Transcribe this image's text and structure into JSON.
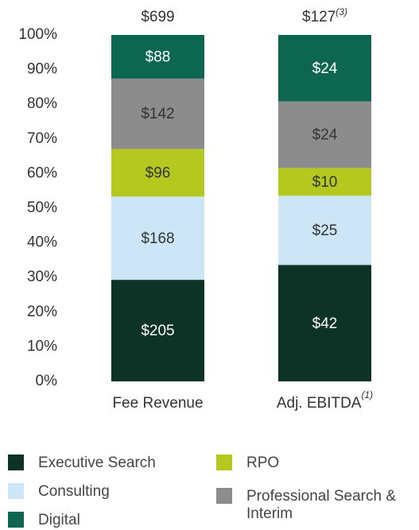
{
  "chart_data": {
    "type": "stacked_percent_bar",
    "categories": [
      "Fee Revenue",
      "Adj. EBITDA"
    ],
    "category_footnotes": [
      {
        "category": "Adj. EBITDA",
        "text": "(1)"
      }
    ],
    "totals": [
      {
        "label": "$699"
      },
      {
        "label": "$127",
        "footnote": "(3)"
      }
    ],
    "series": [
      {
        "name": "Executive Search",
        "color": "#0d3326",
        "values": [
          205,
          42
        ],
        "value_labels": [
          "$205",
          "$42"
        ]
      },
      {
        "name": "Consulting",
        "color": "#cde6f7",
        "values": [
          168,
          25
        ],
        "value_labels": [
          "$168",
          "$25"
        ]
      },
      {
        "name": "RPO",
        "color": "#b5c81f",
        "values": [
          96,
          10
        ],
        "value_labels": [
          "$96",
          "$10"
        ]
      },
      {
        "name": "Professional Search & Interim",
        "color": "#8c8c8c",
        "values": [
          142,
          24
        ],
        "value_labels": [
          "$142",
          "$24"
        ]
      },
      {
        "name": "Digital",
        "color": "#0d6650",
        "values": [
          88,
          24
        ],
        "value_labels": [
          "$88",
          "$24"
        ]
      }
    ],
    "ylim": [
      0,
      100
    ],
    "yticks": [
      {
        "value": 0,
        "label": "0%"
      },
      {
        "value": 10,
        "label": "10%"
      },
      {
        "value": 20,
        "label": "20%"
      },
      {
        "value": 30,
        "label": "30%"
      },
      {
        "value": 40,
        "label": "40%"
      },
      {
        "value": 50,
        "label": "50%"
      },
      {
        "value": 60,
        "label": "60%"
      },
      {
        "value": 70,
        "label": "70%"
      },
      {
        "value": 80,
        "label": "80%"
      },
      {
        "value": 90,
        "label": "90%"
      },
      {
        "value": 100,
        "label": "100%"
      }
    ],
    "grid": false,
    "legend": "bottom"
  }
}
